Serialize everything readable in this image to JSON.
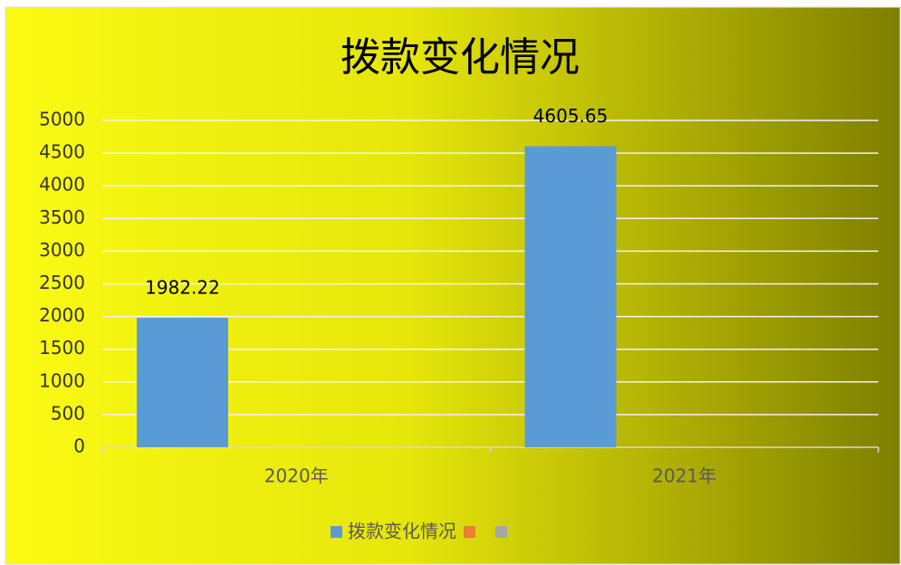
{
  "chart_data": {
    "type": "bar",
    "title": "拨款变化情况",
    "categories": [
      "2020年",
      "2021年"
    ],
    "series": [
      {
        "name": "拨款变化情况",
        "color": "#5b9bd5",
        "values": [
          1982.22,
          4605.65
        ]
      },
      {
        "name": null,
        "color": "#ed7d31",
        "values": [
          null,
          null
        ]
      },
      {
        "name": null,
        "color": "#a5a5a5",
        "values": [
          null,
          null
        ]
      }
    ],
    "ylim": [
      0,
      5000
    ],
    "yticks": [
      0,
      500,
      1000,
      1500,
      2000,
      2500,
      3000,
      3500,
      4000,
      4500,
      5000
    ],
    "grid": true,
    "legend": "bottom"
  }
}
